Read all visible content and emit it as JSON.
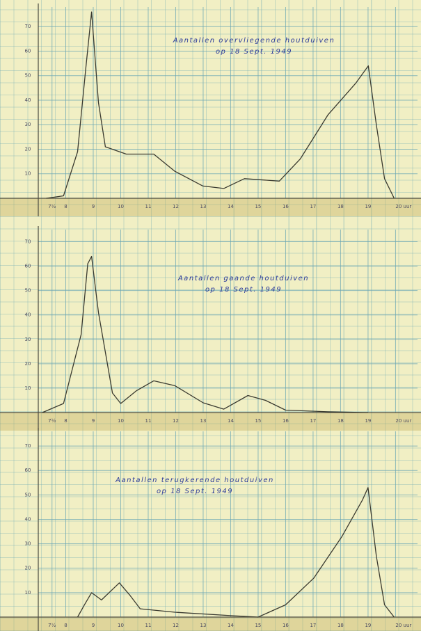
{
  "chart_data": [
    {
      "type": "line",
      "title": "Aantallen overvliegende houtduiven",
      "subtitle": "op 18 Sept. 1949",
      "x": [
        7.29,
        7.92,
        8.43,
        8.73,
        8.94,
        9.19,
        9.44,
        10.2,
        11.2,
        11.97,
        12.99,
        13.75,
        14.5,
        15.77,
        16.53,
        17.54,
        18.56,
        19.01,
        19.3,
        19.6,
        19.95
      ],
      "values": [
        0,
        1,
        19,
        53,
        76,
        39,
        21,
        18,
        18,
        11,
        5,
        4,
        8,
        7,
        16,
        34,
        47,
        54,
        30,
        8,
        0
      ],
      "color": "#3a3a30",
      "xlim": [
        7,
        20.8
      ],
      "ylim": [
        0,
        78
      ],
      "xticks": [
        {
          "value": 7.5,
          "label": "7½"
        },
        8,
        9,
        10,
        11,
        12,
        13,
        14,
        15,
        16,
        17,
        18,
        19,
        {
          "value": 20,
          "label": "20 uur"
        }
      ],
      "yticks": [
        10,
        20,
        30,
        40,
        50,
        60,
        70
      ],
      "grid": true
    },
    {
      "type": "line",
      "title": "Aantallen gaande houtduiven",
      "subtitle": "op 18 Sept. 1949",
      "x": [
        7.15,
        7.92,
        8.56,
        8.8,
        8.94,
        9.19,
        9.7,
        10.0,
        10.58,
        11.2,
        11.97,
        13.0,
        13.75,
        14.63,
        15.27,
        16.0,
        17.54,
        19.0
      ],
      "values": [
        0,
        3.7,
        32,
        61,
        64,
        41,
        8,
        3.7,
        9,
        13,
        11,
        4,
        1.4,
        7,
        5,
        1,
        0.3,
        0
      ],
      "color": "#3a3a30",
      "xlim": [
        7,
        20.8
      ],
      "ylim": [
        0,
        75
      ],
      "xticks": [
        {
          "value": 7.5,
          "label": "7½"
        },
        8,
        9,
        10,
        11,
        12,
        13,
        14,
        15,
        16,
        17,
        18,
        19,
        {
          "value": 20,
          "label": "20 uur"
        }
      ],
      "yticks": [
        10,
        20,
        30,
        40,
        50,
        60,
        70
      ],
      "grid": true
    },
    {
      "type": "line",
      "title": "Aantallen terugkerende houtduiven",
      "subtitle": "op 18 Sept. 1949",
      "x": [
        8.43,
        8.68,
        8.94,
        9.3,
        9.95,
        10.33,
        10.71,
        11.97,
        14.0,
        15.0,
        16.0,
        17.03,
        18.05,
        18.8,
        19.0,
        19.3,
        19.6,
        19.95
      ],
      "values": [
        0,
        5,
        10,
        7,
        14,
        9,
        3.4,
        2,
        0.6,
        0,
        5,
        16,
        33,
        48,
        53,
        25,
        5,
        0
      ],
      "color": "#3a3a30",
      "xlim": [
        7,
        20.8
      ],
      "ylim": [
        0,
        76
      ],
      "xticks": [
        {
          "value": 7.5,
          "label": "7½"
        },
        8,
        9,
        10,
        11,
        12,
        13,
        14,
        15,
        16,
        17,
        18,
        19,
        {
          "value": 20,
          "label": "20 uur"
        }
      ],
      "yticks": [
        10,
        20,
        30,
        40,
        50,
        60,
        70
      ],
      "grid": true
    }
  ]
}
